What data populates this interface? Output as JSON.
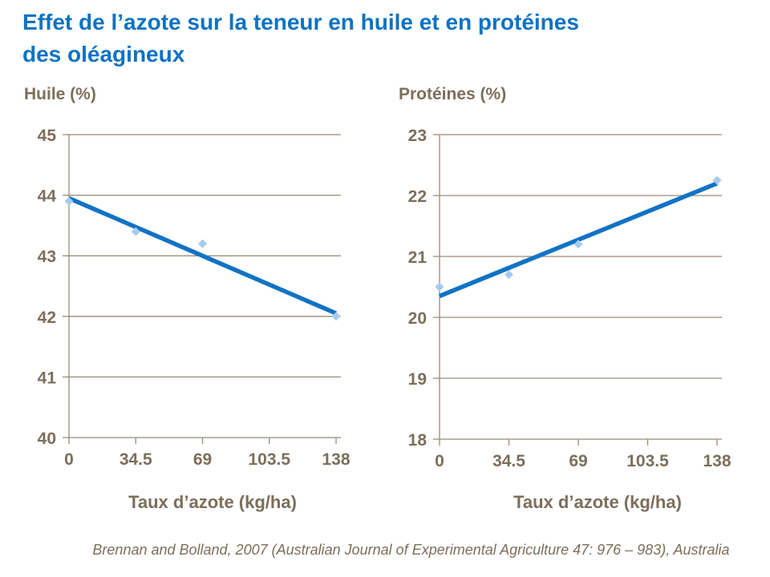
{
  "title": {
    "line1": "Effet de l’azote sur la teneur en huile et en protéines",
    "line2": "des oléagineux"
  },
  "citation": "Brennan and Bolland, 2007 (Australian Journal of Experimental Agriculture 47: 976 – 983), Australia",
  "colors": {
    "title_blue": "#0d72c4",
    "line_blue": "#1173c4",
    "marker_blue": "#a6cbf0",
    "axis_text": "#7c6e5a",
    "grid": "#998b79",
    "background": "#ffffff"
  },
  "chart_data": [
    {
      "type": "scatter",
      "title": "Huile (%)",
      "xlabel": "Taux d’azote (kg/ha)",
      "ylabel": "",
      "xlim": [
        0,
        138
      ],
      "ylim": [
        40,
        45
      ],
      "grid": true,
      "legend": "none",
      "xticks": [
        0,
        34.5,
        69,
        103.5,
        138
      ],
      "xtick_labels": [
        "0",
        "34.5",
        "69",
        "103.5",
        "138"
      ],
      "yticks": [
        40,
        41,
        42,
        43,
        44,
        45
      ],
      "points": [
        {
          "x": 0,
          "y": 43.9
        },
        {
          "x": 34.5,
          "y": 43.4
        },
        {
          "x": 69,
          "y": 43.2
        },
        {
          "x": 138,
          "y": 42.0
        }
      ],
      "trendline": {
        "x1": 0,
        "y1": 43.95,
        "x2": 138,
        "y2": 42.05
      }
    },
    {
      "type": "scatter",
      "title": "Protéines (%)",
      "xlabel": "Taux d’azote (kg/ha)",
      "ylabel": "",
      "xlim": [
        0,
        138
      ],
      "ylim": [
        18,
        23
      ],
      "grid": true,
      "legend": "none",
      "xticks": [
        0,
        34.5,
        69,
        103.5,
        138
      ],
      "xtick_labels": [
        "0",
        "34.5",
        "69",
        "103.5",
        "138"
      ],
      "yticks": [
        18,
        19,
        20,
        21,
        22,
        23
      ],
      "points": [
        {
          "x": 0,
          "y": 20.5
        },
        {
          "x": 34.5,
          "y": 20.7
        },
        {
          "x": 69,
          "y": 21.2
        },
        {
          "x": 138,
          "y": 22.25
        }
      ],
      "trendline": {
        "x1": 0,
        "y1": 20.35,
        "x2": 138,
        "y2": 22.2
      }
    }
  ]
}
